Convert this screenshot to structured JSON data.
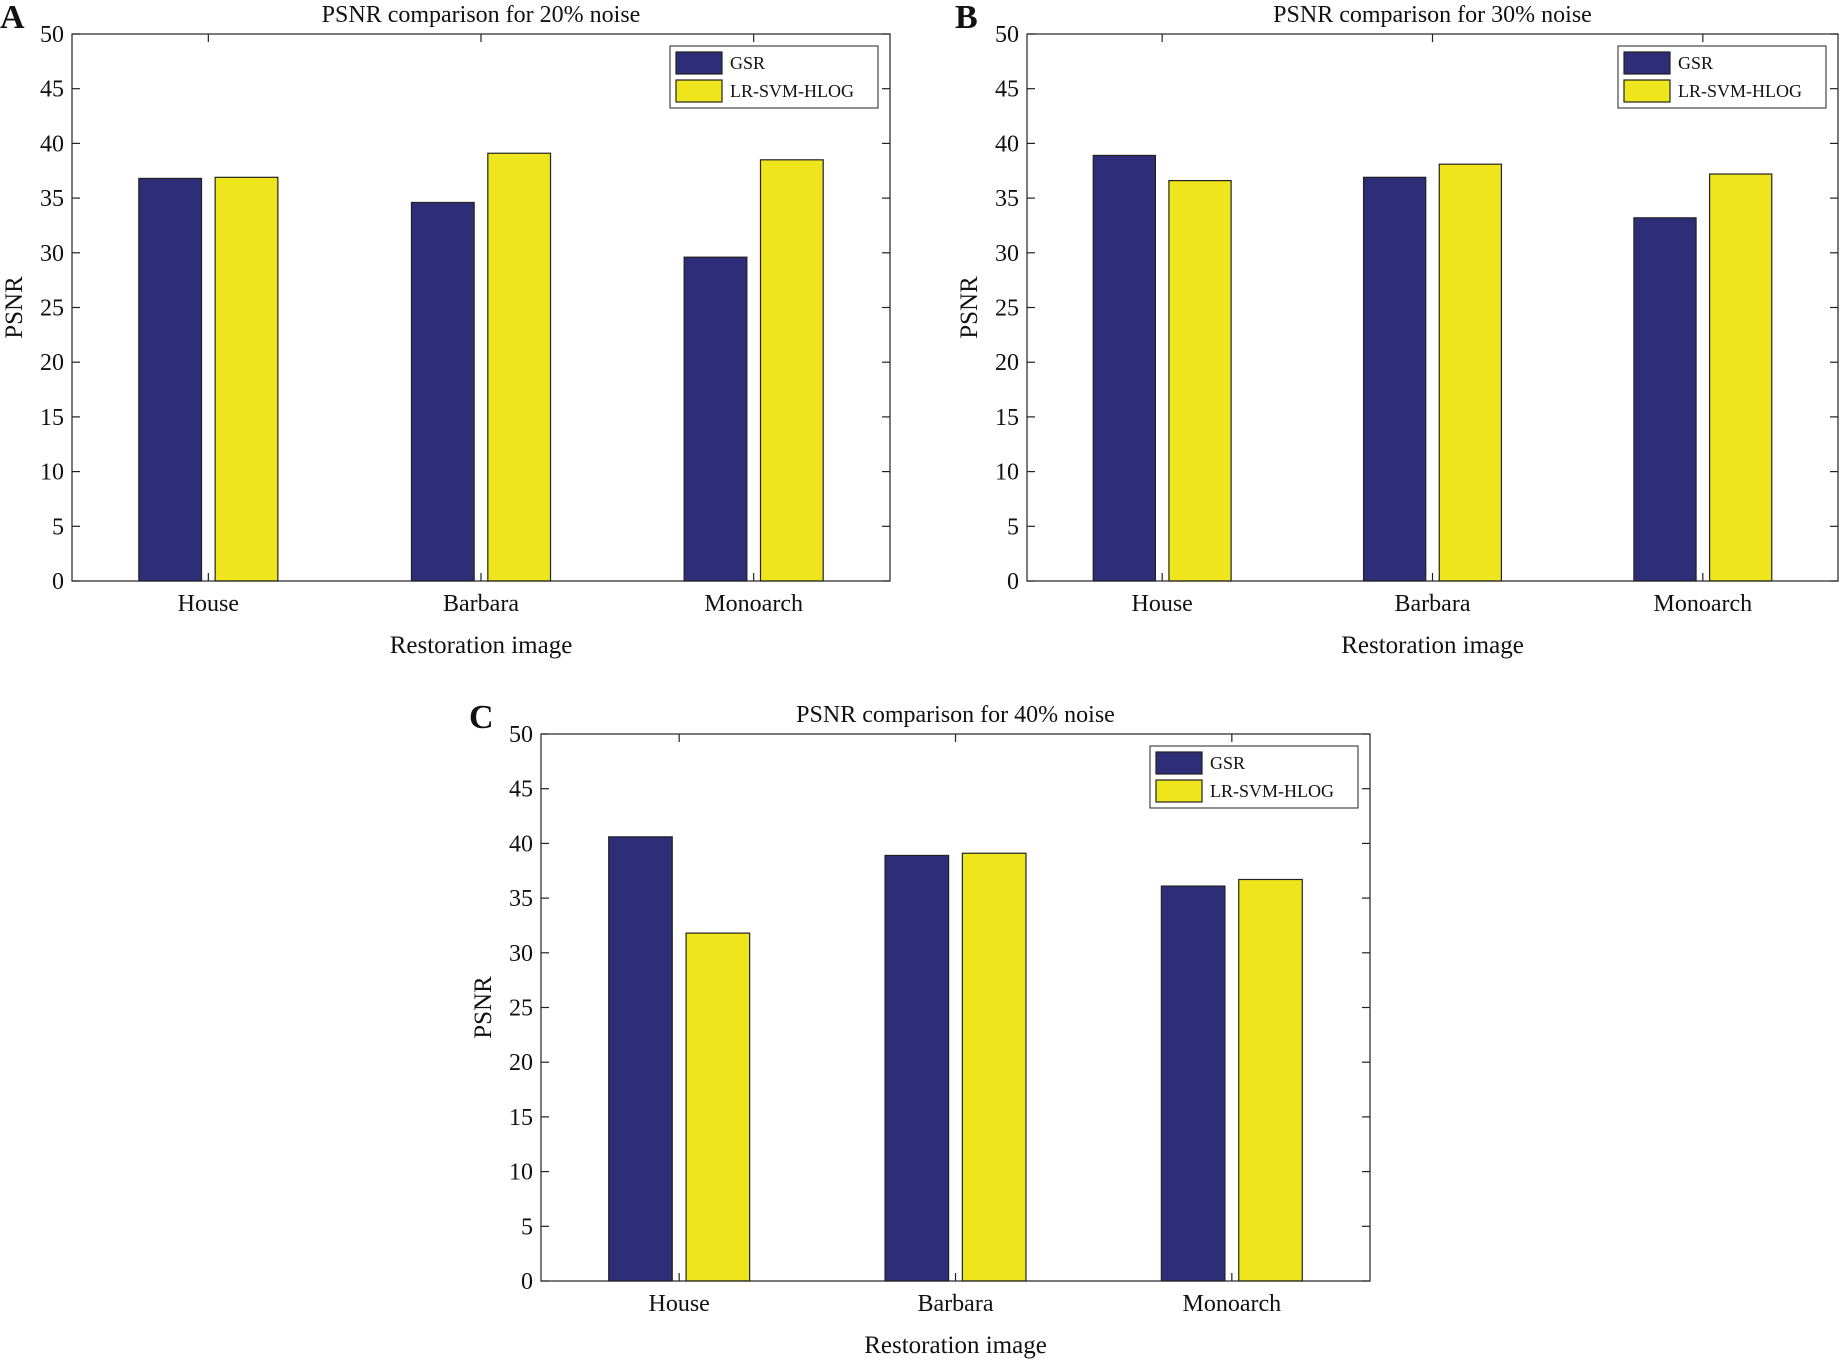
{
  "chart_data": [
    {
      "panel": "A",
      "type": "bar",
      "title": "PSNR comparison for 20% noise",
      "xlabel": "Restoration image",
      "ylabel": "PSNR",
      "ylim": [
        0,
        50
      ],
      "yticks": [
        0,
        5,
        10,
        15,
        20,
        25,
        30,
        35,
        40,
        45,
        50
      ],
      "categories": [
        "House",
        "Barbara",
        "Monoarch"
      ],
      "series": [
        {
          "name": "GSR",
          "color": "#2e2d78",
          "values": [
            36.8,
            34.6,
            29.6
          ]
        },
        {
          "name": "LR-SVM-HLOG",
          "color": "#eee51d",
          "values": [
            36.9,
            39.1,
            38.5
          ]
        }
      ],
      "legend_position": "top-right",
      "grid": false
    },
    {
      "panel": "B",
      "type": "bar",
      "title": "PSNR comparison for 30% noise",
      "xlabel": "Restoration image",
      "ylabel": "PSNR",
      "ylim": [
        0,
        50
      ],
      "yticks": [
        0,
        5,
        10,
        15,
        20,
        25,
        30,
        35,
        40,
        45,
        50
      ],
      "categories": [
        "House",
        "Barbara",
        "Monoarch"
      ],
      "series": [
        {
          "name": "GSR",
          "color": "#2e2d78",
          "values": [
            38.9,
            36.9,
            33.2
          ]
        },
        {
          "name": "LR-SVM-HLOG",
          "color": "#eee51d",
          "values": [
            36.6,
            38.1,
            37.2
          ]
        }
      ],
      "legend_position": "top-right",
      "grid": false
    },
    {
      "panel": "C",
      "type": "bar",
      "title": "PSNR comparison for 40% noise",
      "xlabel": "Restoration image",
      "ylabel": "PSNR",
      "ylim": [
        0,
        50
      ],
      "yticks": [
        0,
        5,
        10,
        15,
        20,
        25,
        30,
        35,
        40,
        45,
        50
      ],
      "categories": [
        "House",
        "Barbara",
        "Monoarch"
      ],
      "series": [
        {
          "name": "GSR",
          "color": "#2e2d78",
          "values": [
            40.6,
            38.9,
            36.1
          ]
        },
        {
          "name": "LR-SVM-HLOG",
          "color": "#eee51d",
          "values": [
            31.8,
            39.1,
            36.7
          ]
        }
      ],
      "legend_position": "top-right",
      "grid": false
    }
  ]
}
